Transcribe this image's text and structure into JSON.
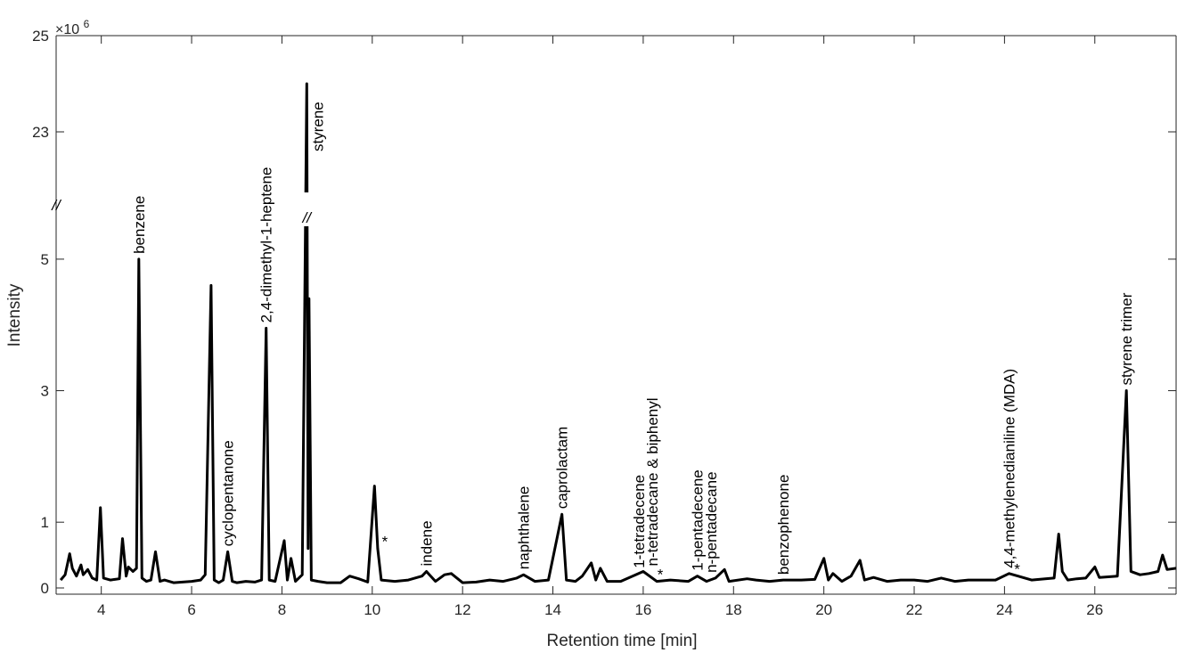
{
  "chart_data": {
    "type": "line",
    "xlabel": "Retention time [min]",
    "ylabel": "Intensity",
    "y_multiplier": {
      "base": "×10",
      "exponent": "6"
    },
    "xlim": [
      3.0,
      27.8
    ],
    "x_ticks": [
      4,
      6,
      8,
      10,
      12,
      14,
      16,
      18,
      20,
      22,
      24,
      26
    ],
    "x_tick_labels": [
      "4",
      "6",
      "8",
      "10",
      "12",
      "14",
      "16",
      "18",
      "20",
      "22",
      "24",
      "26"
    ],
    "y_scale": "broken",
    "y_segments": [
      {
        "range": [
          0,
          5.5
        ]
      },
      {
        "range": [
          22,
          25
        ]
      }
    ],
    "y_ticks": [
      0,
      1,
      3,
      5,
      23,
      25
    ],
    "y_tick_labels": [
      "0",
      "1",
      "3",
      "5",
      "23",
      "25"
    ],
    "axis_break_marker": "//",
    "grid": false,
    "series": [
      {
        "values": [
          [
            3.1,
            0.12
          ],
          [
            3.2,
            0.2
          ],
          [
            3.3,
            0.52
          ],
          [
            3.36,
            0.3
          ],
          [
            3.45,
            0.18
          ],
          [
            3.55,
            0.35
          ],
          [
            3.6,
            0.2
          ],
          [
            3.7,
            0.28
          ],
          [
            3.8,
            0.15
          ],
          [
            3.9,
            0.12
          ],
          [
            3.98,
            1.22
          ],
          [
            4.05,
            0.15
          ],
          [
            4.2,
            0.12
          ],
          [
            4.3,
            0.13
          ],
          [
            4.4,
            0.14
          ],
          [
            4.47,
            0.75
          ],
          [
            4.55,
            0.18
          ],
          [
            4.6,
            0.32
          ],
          [
            4.7,
            0.25
          ],
          [
            4.78,
            0.3
          ],
          [
            4.83,
            5.0
          ],
          [
            4.9,
            0.15
          ],
          [
            5.0,
            0.1
          ],
          [
            5.1,
            0.12
          ],
          [
            5.2,
            0.55
          ],
          [
            5.3,
            0.1
          ],
          [
            5.4,
            0.12
          ],
          [
            5.6,
            0.08
          ],
          [
            5.8,
            0.09
          ],
          [
            6.0,
            0.1
          ],
          [
            6.2,
            0.12
          ],
          [
            6.3,
            0.2
          ],
          [
            6.43,
            4.6
          ],
          [
            6.5,
            0.12
          ],
          [
            6.6,
            0.08
          ],
          [
            6.7,
            0.12
          ],
          [
            6.8,
            0.55
          ],
          [
            6.9,
            0.1
          ],
          [
            7.0,
            0.08
          ],
          [
            7.2,
            0.1
          ],
          [
            7.4,
            0.09
          ],
          [
            7.55,
            0.12
          ],
          [
            7.65,
            3.95
          ],
          [
            7.72,
            0.12
          ],
          [
            7.85,
            0.1
          ],
          [
            8.05,
            0.72
          ],
          [
            8.12,
            0.12
          ],
          [
            8.2,
            0.45
          ],
          [
            8.3,
            0.1
          ],
          [
            8.45,
            0.2
          ],
          [
            8.55,
            24.0
          ],
          [
            8.58,
            0.6
          ],
          [
            8.6,
            4.4
          ],
          [
            8.65,
            0.12
          ],
          [
            8.8,
            0.1
          ],
          [
            9.0,
            0.08
          ],
          [
            9.3,
            0.08
          ],
          [
            9.5,
            0.18
          ],
          [
            9.7,
            0.14
          ],
          [
            9.9,
            0.09
          ],
          [
            10.05,
            1.55
          ],
          [
            10.12,
            0.6
          ],
          [
            10.2,
            0.12
          ],
          [
            10.5,
            0.1
          ],
          [
            10.8,
            0.12
          ],
          [
            11.1,
            0.18
          ],
          [
            11.2,
            0.25
          ],
          [
            11.4,
            0.1
          ],
          [
            11.6,
            0.2
          ],
          [
            11.75,
            0.22
          ],
          [
            12.0,
            0.08
          ],
          [
            12.3,
            0.09
          ],
          [
            12.6,
            0.12
          ],
          [
            12.9,
            0.1
          ],
          [
            13.2,
            0.15
          ],
          [
            13.35,
            0.2
          ],
          [
            13.6,
            0.1
          ],
          [
            13.9,
            0.12
          ],
          [
            14.2,
            1.12
          ],
          [
            14.3,
            0.12
          ],
          [
            14.5,
            0.1
          ],
          [
            14.65,
            0.18
          ],
          [
            14.85,
            0.38
          ],
          [
            14.95,
            0.12
          ],
          [
            15.05,
            0.3
          ],
          [
            15.2,
            0.1
          ],
          [
            15.5,
            0.1
          ],
          [
            15.9,
            0.22
          ],
          [
            16.0,
            0.25
          ],
          [
            16.3,
            0.1
          ],
          [
            16.6,
            0.12
          ],
          [
            17.0,
            0.1
          ],
          [
            17.2,
            0.18
          ],
          [
            17.4,
            0.1
          ],
          [
            17.6,
            0.15
          ],
          [
            17.8,
            0.28
          ],
          [
            17.9,
            0.1
          ],
          [
            18.3,
            0.14
          ],
          [
            18.5,
            0.12
          ],
          [
            18.8,
            0.1
          ],
          [
            19.1,
            0.12
          ],
          [
            19.5,
            0.12
          ],
          [
            19.8,
            0.13
          ],
          [
            20.0,
            0.45
          ],
          [
            20.1,
            0.12
          ],
          [
            20.2,
            0.22
          ],
          [
            20.4,
            0.1
          ],
          [
            20.6,
            0.18
          ],
          [
            20.8,
            0.42
          ],
          [
            20.9,
            0.12
          ],
          [
            21.1,
            0.16
          ],
          [
            21.4,
            0.1
          ],
          [
            21.7,
            0.12
          ],
          [
            22.0,
            0.12
          ],
          [
            22.3,
            0.1
          ],
          [
            22.6,
            0.15
          ],
          [
            22.9,
            0.1
          ],
          [
            23.2,
            0.12
          ],
          [
            23.5,
            0.12
          ],
          [
            23.8,
            0.12
          ],
          [
            24.1,
            0.22
          ],
          [
            24.3,
            0.18
          ],
          [
            24.6,
            0.12
          ],
          [
            24.9,
            0.14
          ],
          [
            25.1,
            0.15
          ],
          [
            25.2,
            0.82
          ],
          [
            25.28,
            0.25
          ],
          [
            25.4,
            0.12
          ],
          [
            25.6,
            0.14
          ],
          [
            25.8,
            0.15
          ],
          [
            26.0,
            0.32
          ],
          [
            26.1,
            0.16
          ],
          [
            26.3,
            0.17
          ],
          [
            26.5,
            0.18
          ],
          [
            26.7,
            3.0
          ],
          [
            26.8,
            0.25
          ],
          [
            27.0,
            0.2
          ],
          [
            27.2,
            0.22
          ],
          [
            27.4,
            0.25
          ],
          [
            27.5,
            0.5
          ],
          [
            27.6,
            0.28
          ],
          [
            27.8,
            0.3
          ]
        ]
      }
    ],
    "annotations": [
      {
        "text": "benzene",
        "x": 4.83,
        "y": 5.0
      },
      {
        "text": "cyclopentanone",
        "x": 6.8,
        "y": 0.55
      },
      {
        "text": "2,4-dimethyl-1-heptene",
        "x": 7.65,
        "y": 3.95
      },
      {
        "text": "styrene",
        "x": 8.55,
        "y": 24.0
      },
      {
        "text": "indene",
        "x": 11.2,
        "y": 0.25
      },
      {
        "text": "naphthalene",
        "x": 13.35,
        "y": 0.2
      },
      {
        "text": "caprolactam",
        "x": 14.2,
        "y": 1.12
      },
      {
        "text": "1-tetradecene",
        "x": 15.9,
        "y": 0.22
      },
      {
        "text": "n-tetradecane & biphenyl",
        "x": 16.2,
        "y": 0.25
      },
      {
        "text": "1-pentadecene",
        "x": 17.2,
        "y": 0.18
      },
      {
        "text": "n-pentadecane",
        "x": 17.5,
        "y": 0.15
      },
      {
        "text": "benzophenone",
        "x": 19.1,
        "y": 0.12
      },
      {
        "text": "4,4-methylenedianiline (MDA)",
        "x": 24.1,
        "y": 0.22
      },
      {
        "text": "styrene trimer",
        "x": 26.7,
        "y": 3.0
      }
    ],
    "star_markers": [
      {
        "text": "*",
        "x": 10.2,
        "y": 0.6
      },
      {
        "text": "*",
        "x": 16.3,
        "y": 0.1
      },
      {
        "text": "*",
        "x": 24.2,
        "y": 0.18
      }
    ]
  }
}
